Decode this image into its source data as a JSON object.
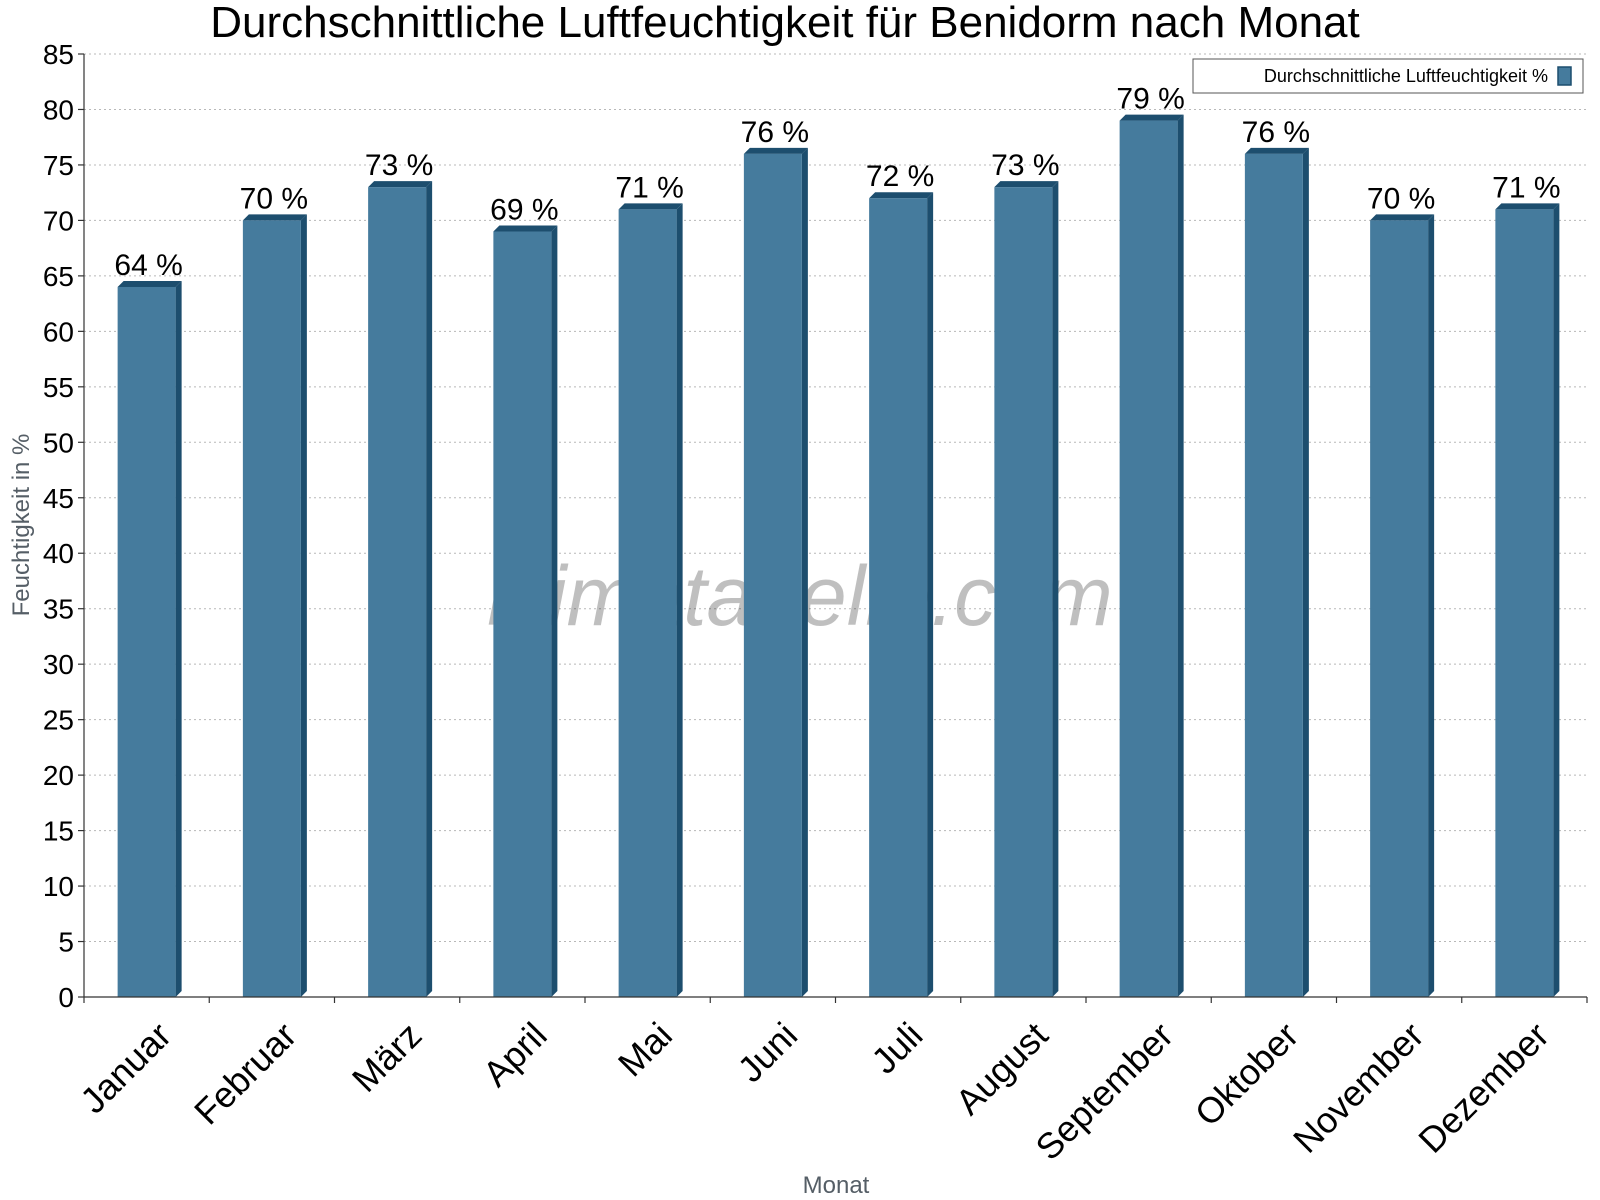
{
  "chart_data": {
    "type": "bar",
    "title": "Durchschnittliche Luftfeuchtigkeit für Benidorm nach Monat",
    "xlabel": "Monat",
    "ylabel": "Feuchtigkeit in %",
    "ylim": [
      0,
      85
    ],
    "ytick_step": 5,
    "grid": true,
    "legend_position": "top-right",
    "categories": [
      "Januar",
      "Februar",
      "März",
      "April",
      "Mai",
      "Juni",
      "Juli",
      "August",
      "September",
      "Oktober",
      "November",
      "Dezember"
    ],
    "series": [
      {
        "name": "Durchschnittliche Luftfeuchtigkeit %",
        "values": [
          64,
          70,
          73,
          69,
          71,
          76,
          72,
          73,
          79,
          76,
          70,
          71
        ],
        "labels": [
          "64 %",
          "70 %",
          "73 %",
          "69 %",
          "71 %",
          "76 %",
          "72 %",
          "73 %",
          "79 %",
          "76 %",
          "70 %",
          "71 %"
        ],
        "color": "#457b9d",
        "edge_color": "#1d4e6e"
      }
    ]
  },
  "watermark": "klimatabelle.com"
}
